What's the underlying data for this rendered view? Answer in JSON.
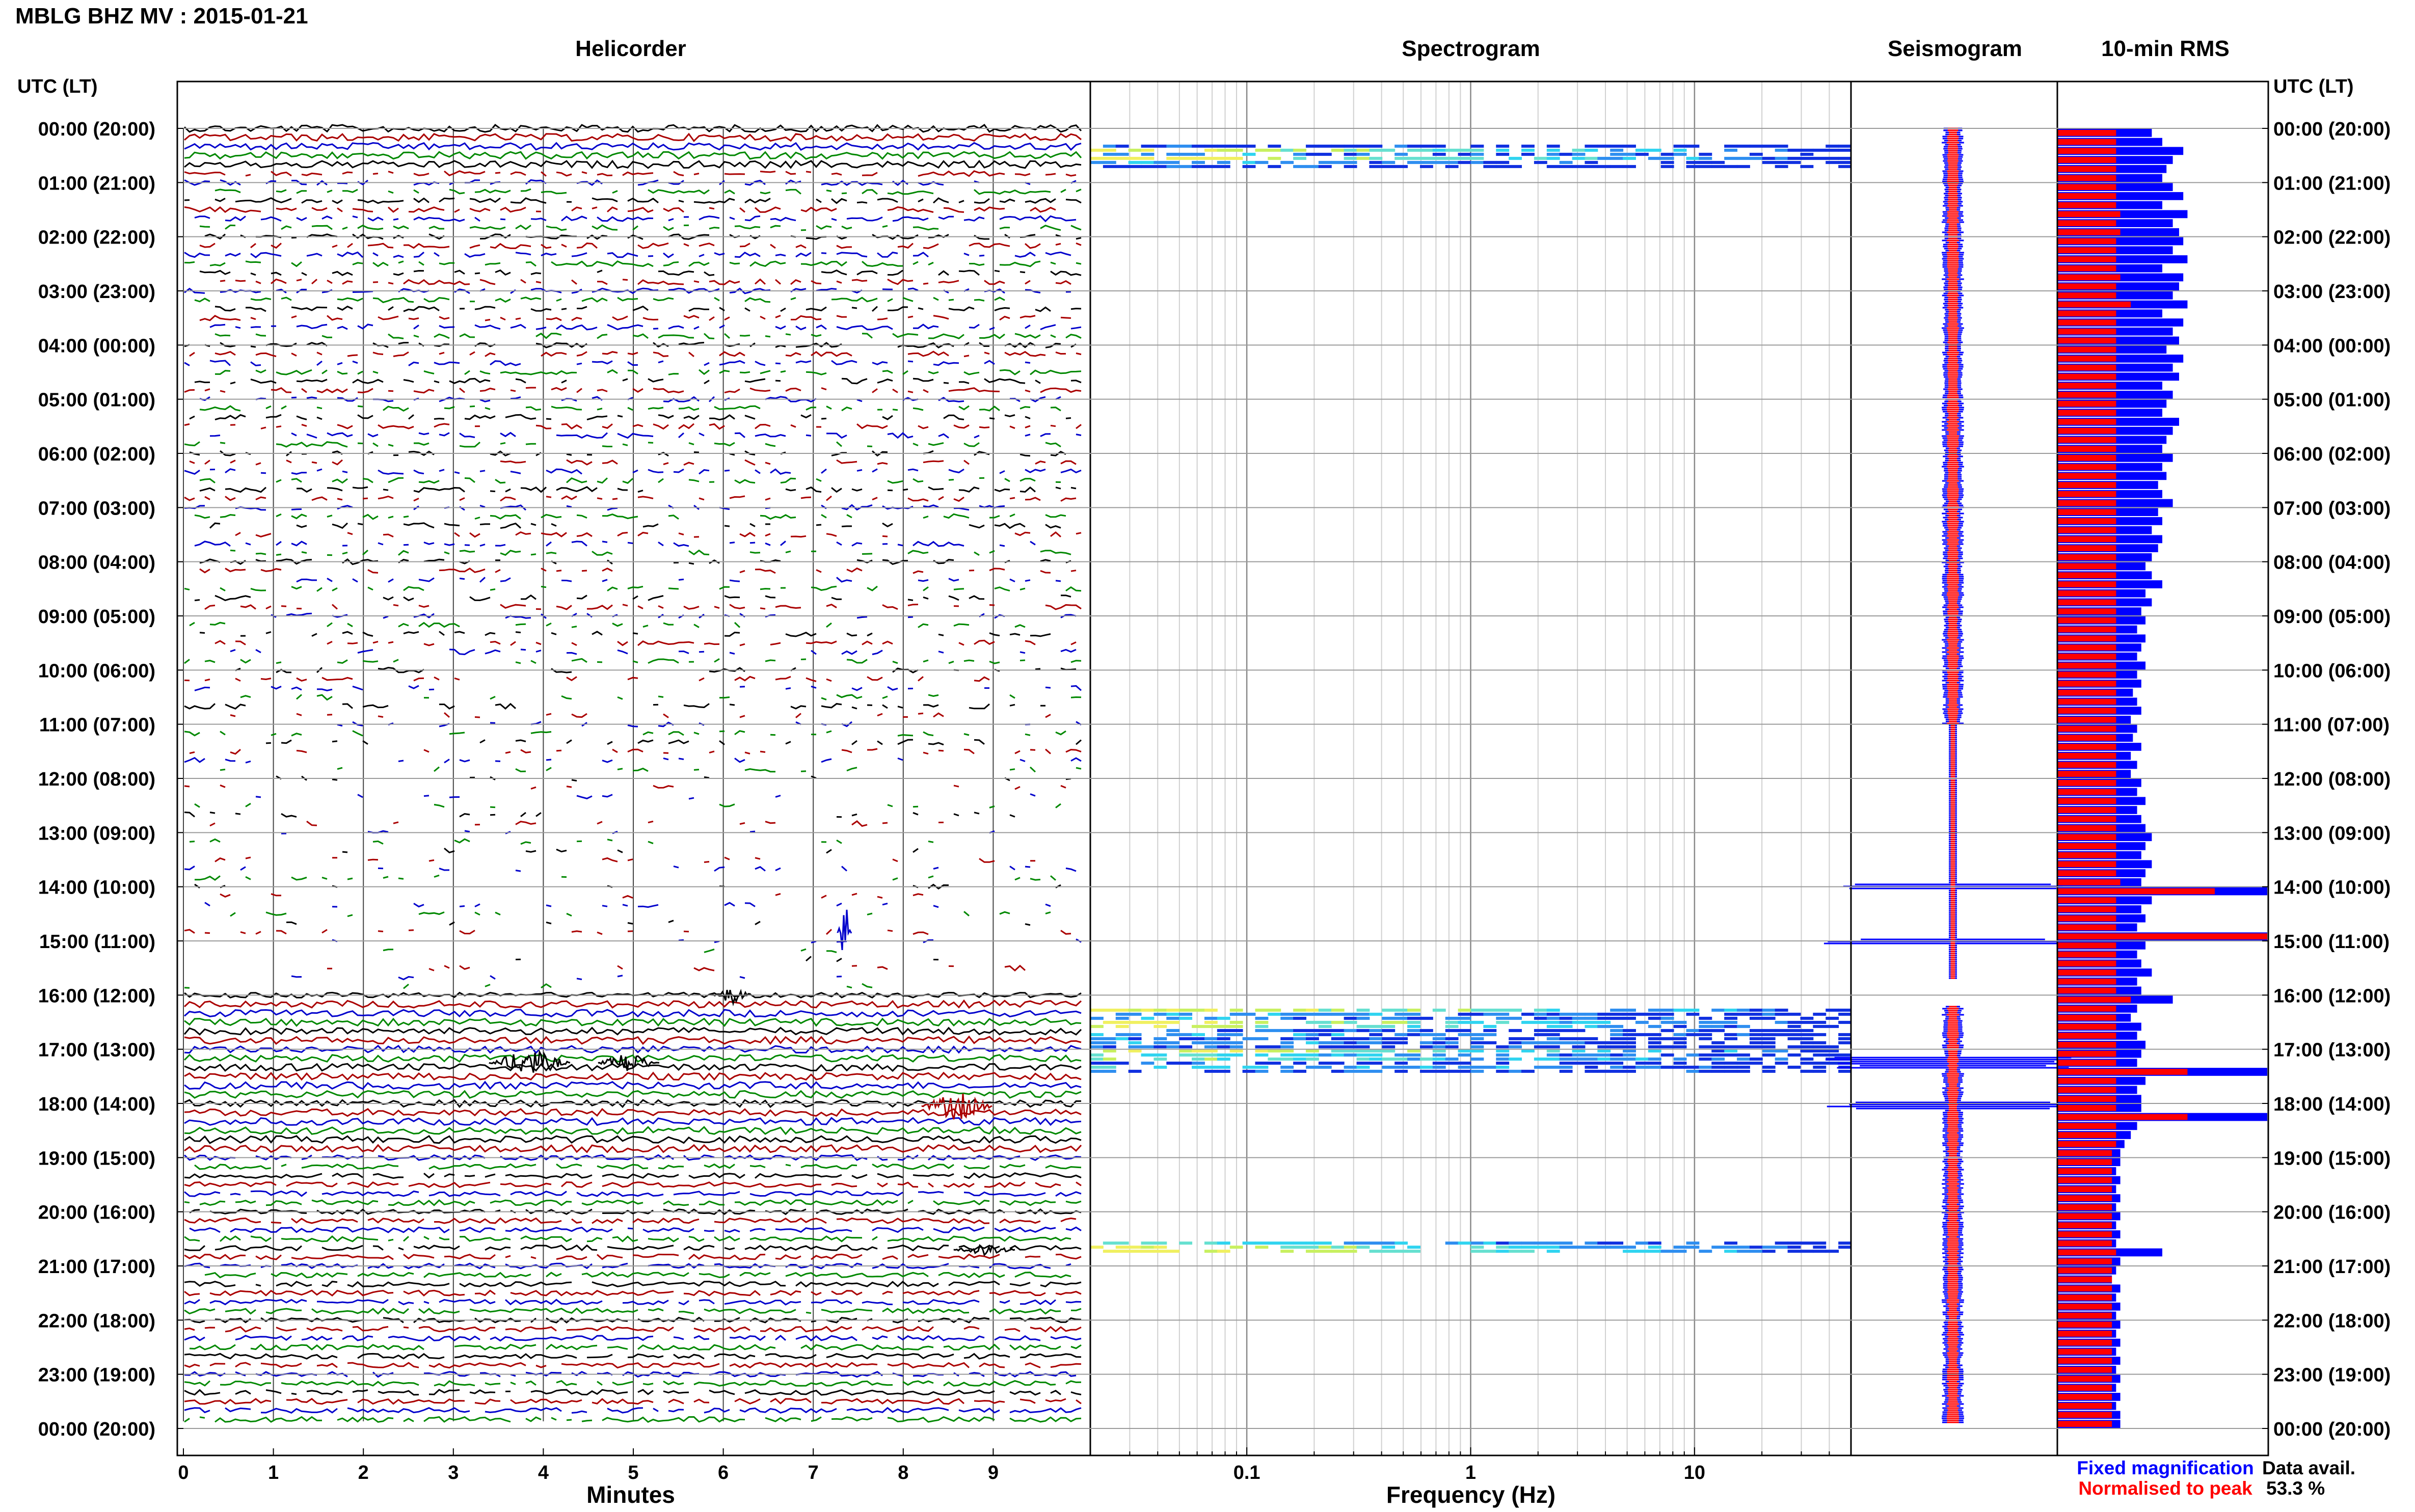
{
  "title": "MBLG BHZ MV : 2015-01-21",
  "utc_header_left": "UTC (LT)",
  "utc_header_right": "UTC (LT)",
  "panels": {
    "helicorder": {
      "title": "Helicorder",
      "xlabel": "Minutes"
    },
    "spectrogram": {
      "title": "Spectrogram",
      "xlabel": "Frequency (Hz)"
    },
    "seismogram": {
      "title": "Seismogram"
    },
    "rms": {
      "title": "10-min RMS"
    }
  },
  "time_labels": [
    "00:00 (20:00)",
    "01:00 (21:00)",
    "02:00 (22:00)",
    "03:00 (23:00)",
    "04:00 (00:00)",
    "05:00 (01:00)",
    "06:00 (02:00)",
    "07:00 (03:00)",
    "08:00 (04:00)",
    "09:00 (05:00)",
    "10:00 (06:00)",
    "11:00 (07:00)",
    "12:00 (08:00)",
    "13:00 (09:00)",
    "14:00 (10:00)",
    "15:00 (11:00)",
    "16:00 (12:00)",
    "17:00 (13:00)",
    "18:00 (14:00)",
    "19:00 (15:00)",
    "20:00 (16:00)",
    "21:00 (17:00)",
    "22:00 (18:00)",
    "23:00 (19:00)",
    "00:00 (20:00)"
  ],
  "legend": {
    "fixed": "Fixed magnification",
    "normalised": "Normalised to peak",
    "fixed_color": "#0000ff",
    "normalised_color": "#ff0000"
  },
  "data_avail_label": "Data avail.",
  "data_avail_value": "53.3 %",
  "chart_data": [
    {
      "type": "line",
      "title": "Helicorder",
      "xlabel": "Minutes",
      "x_ticks": [
        "0",
        "1",
        "2",
        "3",
        "4",
        "5",
        "6",
        "7",
        "8",
        "9"
      ],
      "xlim": [
        0,
        10
      ],
      "ylim_hours": [
        0,
        24
      ],
      "trace_colors": [
        "#000000",
        "#aa0000",
        "#0000cc",
        "#008800"
      ],
      "line_count": 144
    },
    {
      "type": "heatmap",
      "title": "Spectrogram",
      "xlabel": "Frequency (Hz)",
      "x_ticks": [
        "0.1",
        "1",
        "10"
      ],
      "xscale": "log",
      "xlim": [
        0.02,
        50
      ],
      "active_bands_hours": [
        [
          0.3,
          0.7
        ],
        [
          16.25,
          17.4
        ],
        [
          20.55,
          20.75
        ]
      ]
    },
    {
      "type": "area",
      "title": "Seismogram",
      "colors": [
        "#0000ff",
        "#ff0000"
      ]
    },
    {
      "type": "bar",
      "title": "10-min RMS",
      "orientation": "horizontal",
      "series": [
        {
          "name": "Fixed magnification",
          "color": "#0000ff",
          "values": [
            0.45,
            0.5,
            0.6,
            0.55,
            0.52,
            0.5,
            0.55,
            0.6,
            0.5,
            0.62,
            0.55,
            0.58,
            0.6,
            0.55,
            0.62,
            0.5,
            0.6,
            0.58,
            0.55,
            0.62,
            0.5,
            0.6,
            0.55,
            0.58,
            0.52,
            0.6,
            0.55,
            0.58,
            0.5,
            0.55,
            0.52,
            0.5,
            0.58,
            0.55,
            0.52,
            0.5,
            0.55,
            0.5,
            0.52,
            0.48,
            0.5,
            0.55,
            0.48,
            0.5,
            0.45,
            0.5,
            0.48,
            0.45,
            0.42,
            0.45,
            0.5,
            0.42,
            0.45,
            0.4,
            0.42,
            0.38,
            0.42,
            0.4,
            0.38,
            0.42,
            0.38,
            0.4,
            0.36,
            0.38,
            0.4,
            0.35,
            0.38,
            0.36,
            0.4,
            0.35,
            0.38,
            0.35,
            0.4,
            0.38,
            0.42,
            0.38,
            0.4,
            0.42,
            0.45,
            0.42,
            0.4,
            0.45,
            0.42,
            0.4,
            1.0,
            0.45,
            0.4,
            0.42,
            0.38,
            1.0,
            0.42,
            0.38,
            0.4,
            0.45,
            0.38,
            0.4,
            0.55,
            0.38,
            0.35,
            0.4,
            0.38,
            0.42,
            0.4,
            0.38,
            1.0,
            0.42,
            0.38,
            0.4,
            0.4,
            1.0,
            0.38,
            0.35,
            0.32,
            0.3,
            0.3,
            0.28,
            0.3,
            0.28,
            0.3,
            0.28,
            0.3,
            0.28,
            0.3,
            0.28,
            0.5,
            0.3,
            0.28,
            0.26,
            0.3,
            0.28,
            0.3,
            0.28,
            0.3,
            0.28,
            0.3,
            0.28,
            0.3,
            0.28,
            0.3,
            0.28,
            0.3,
            0.28,
            0.3,
            0.3
          ]
        },
        {
          "name": "Normalised to peak",
          "color": "#ff0000",
          "values": [
            0.28,
            0.28,
            0.28,
            0.28,
            0.28,
            0.28,
            0.28,
            0.28,
            0.28,
            0.3,
            0.28,
            0.3,
            0.28,
            0.28,
            0.28,
            0.28,
            0.3,
            0.28,
            0.28,
            0.35,
            0.28,
            0.28,
            0.28,
            0.28,
            0.28,
            0.28,
            0.28,
            0.28,
            0.28,
            0.28,
            0.28,
            0.28,
            0.28,
            0.28,
            0.28,
            0.28,
            0.28,
            0.28,
            0.28,
            0.28,
            0.28,
            0.28,
            0.28,
            0.28,
            0.28,
            0.28,
            0.28,
            0.28,
            0.28,
            0.28,
            0.28,
            0.28,
            0.28,
            0.28,
            0.28,
            0.28,
            0.28,
            0.28,
            0.28,
            0.28,
            0.28,
            0.28,
            0.28,
            0.28,
            0.28,
            0.28,
            0.28,
            0.28,
            0.28,
            0.28,
            0.28,
            0.28,
            0.28,
            0.28,
            0.28,
            0.28,
            0.28,
            0.28,
            0.28,
            0.28,
            0.28,
            0.28,
            0.28,
            0.3,
            0.75,
            0.28,
            0.28,
            0.28,
            0.28,
            1.0,
            0.28,
            0.28,
            0.28,
            0.28,
            0.28,
            0.28,
            0.35,
            0.28,
            0.28,
            0.28,
            0.28,
            0.28,
            0.28,
            0.28,
            0.62,
            0.28,
            0.28,
            0.28,
            0.28,
            0.62,
            0.28,
            0.28,
            0.28,
            0.26,
            0.26,
            0.26,
            0.26,
            0.26,
            0.26,
            0.26,
            0.26,
            0.26,
            0.26,
            0.26,
            0.28,
            0.26,
            0.26,
            0.26,
            0.26,
            0.26,
            0.26,
            0.26,
            0.26,
            0.26,
            0.26,
            0.26,
            0.26,
            0.26,
            0.26,
            0.26,
            0.26,
            0.26,
            0.26,
            0.26
          ]
        }
      ]
    }
  ]
}
